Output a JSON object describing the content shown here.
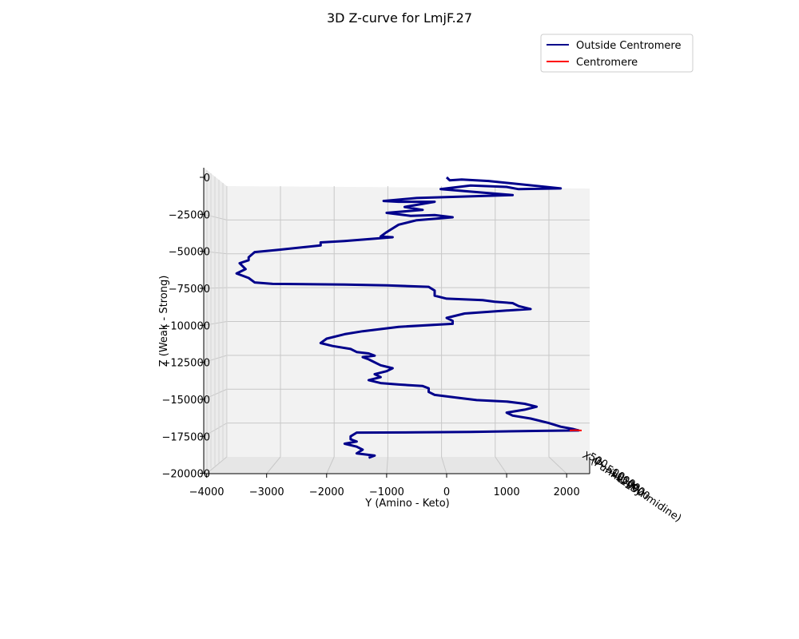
{
  "chart_data": {
    "type": "line",
    "projection": "3d",
    "title": "3D Z-curve for LmjF.27",
    "xlabel": "X (Purine - Pyrimidine)",
    "ylabel": "Y (Amino - Keto)",
    "zlabel": "Z (Weak - Strong)",
    "ylim": [
      -4000,
      2200
    ],
    "zlim": [
      -200000,
      5000
    ],
    "grid": true,
    "legend_position": "top-right",
    "y_ticks": [
      -4000,
      -3000,
      -2000,
      -1000,
      0,
      1000,
      2000
    ],
    "z_ticks": [
      0,
      -25000,
      -50000,
      -75000,
      -100000,
      -125000,
      -150000,
      -175000,
      -200000
    ],
    "x_tick_labels": [
      "500",
      "0",
      "-500",
      "-1000",
      "-1500",
      "-2000",
      "-2500"
    ],
    "series": [
      {
        "name": "Outside Centromere",
        "color": "#00008b",
        "points": [
          [
            0,
            0
          ],
          [
            50,
            -2000
          ],
          [
            250,
            -1500
          ],
          [
            700,
            -2500
          ],
          [
            1900,
            -7500
          ],
          [
            1200,
            -8000
          ],
          [
            1000,
            -6500
          ],
          [
            400,
            -5500
          ],
          [
            -100,
            -8000
          ],
          [
            800,
            -11000
          ],
          [
            1100,
            -12000
          ],
          [
            -500,
            -14000
          ],
          [
            -1050,
            -16000
          ],
          [
            -800,
            -16500
          ],
          [
            -200,
            -16500
          ],
          [
            -700,
            -20000
          ],
          [
            -400,
            -22000
          ],
          [
            -1000,
            -24000
          ],
          [
            -600,
            -26000
          ],
          [
            -200,
            -25500
          ],
          [
            100,
            -27000
          ],
          [
            -500,
            -29000
          ],
          [
            -800,
            -32000
          ],
          [
            -1000,
            -37000
          ],
          [
            -1100,
            -40000
          ],
          [
            -900,
            -40500
          ],
          [
            -1700,
            -43000
          ],
          [
            -2100,
            -44000
          ],
          [
            -2100,
            -46000
          ],
          [
            -2800,
            -49000
          ],
          [
            -3200,
            -50500
          ],
          [
            -3300,
            -54000
          ],
          [
            -3300,
            -56000
          ],
          [
            -3450,
            -58000
          ],
          [
            -3350,
            -62000
          ],
          [
            -3500,
            -65000
          ],
          [
            -3300,
            -68000
          ],
          [
            -3200,
            -71000
          ],
          [
            -2900,
            -72000
          ],
          [
            -1700,
            -72500
          ],
          [
            -1000,
            -73000
          ],
          [
            -300,
            -74000
          ],
          [
            -200,
            -76500
          ],
          [
            -200,
            -80000
          ],
          [
            -100,
            -81000
          ],
          [
            0,
            -82000
          ],
          [
            600,
            -83000
          ],
          [
            800,
            -84000
          ],
          [
            1100,
            -85000
          ],
          [
            1200,
            -87000
          ],
          [
            1400,
            -89000
          ],
          [
            1000,
            -90000
          ],
          [
            300,
            -92000
          ],
          [
            0,
            -95000
          ],
          [
            100,
            -97000
          ],
          [
            100,
            -99000
          ],
          [
            -800,
            -101000
          ],
          [
            -1400,
            -104000
          ],
          [
            -1700,
            -106000
          ],
          [
            -2000,
            -109000
          ],
          [
            -2100,
            -112000
          ],
          [
            -1900,
            -114000
          ],
          [
            -1600,
            -116000
          ],
          [
            -1500,
            -118000
          ],
          [
            -1300,
            -119000
          ],
          [
            -1200,
            -120500
          ],
          [
            -1400,
            -121500
          ],
          [
            -1300,
            -123000
          ],
          [
            -1200,
            -125000
          ],
          [
            -1100,
            -127000
          ],
          [
            -900,
            -129000
          ],
          [
            -1000,
            -131000
          ],
          [
            -1200,
            -133000
          ],
          [
            -1100,
            -135000
          ],
          [
            -1300,
            -137000
          ],
          [
            -1100,
            -139000
          ],
          [
            -800,
            -140000
          ],
          [
            -400,
            -141000
          ],
          [
            -300,
            -142500
          ],
          [
            -300,
            -145000
          ],
          [
            -200,
            -147000
          ],
          [
            200,
            -149000
          ],
          [
            500,
            -150500
          ],
          [
            1000,
            -151500
          ],
          [
            1300,
            -153000
          ],
          [
            1500,
            -155000
          ],
          [
            1300,
            -157000
          ],
          [
            1000,
            -159000
          ],
          [
            1100,
            -161000
          ],
          [
            1400,
            -163000
          ],
          [
            1700,
            -166000
          ],
          [
            1900,
            -168500
          ],
          [
            2100,
            -170000
          ],
          [
            2200,
            -171000
          ],
          [
            1600,
            -171300
          ],
          [
            400,
            -172000
          ],
          [
            -500,
            -172300
          ],
          [
            -1500,
            -172500
          ],
          [
            -1600,
            -175000
          ],
          [
            -1600,
            -177000
          ],
          [
            -1500,
            -178500
          ],
          [
            -1700,
            -180000
          ],
          [
            -1500,
            -182000
          ],
          [
            -1400,
            -184000
          ],
          [
            -1500,
            -186500
          ],
          [
            -1200,
            -188000
          ],
          [
            -1300,
            -189500
          ]
        ]
      },
      {
        "name": "Centromere",
        "color": "#ff0000",
        "points": [
          [
            2050,
            -171000
          ],
          [
            2150,
            -170800
          ],
          [
            2250,
            -171100
          ]
        ]
      }
    ]
  }
}
